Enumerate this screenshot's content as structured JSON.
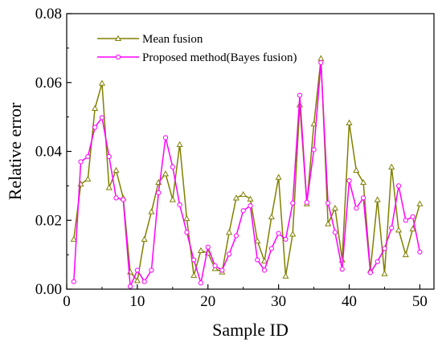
{
  "chart_data": {
    "type": "line",
    "xlabel": "Sample ID",
    "ylabel": "Relative error",
    "xlim": [
      0,
      52
    ],
    "ylim": [
      0,
      0.08
    ],
    "xticks": [
      0,
      10,
      20,
      30,
      40,
      50
    ],
    "yticks": [
      0.0,
      0.02,
      0.04,
      0.06,
      0.08
    ],
    "xtick_labels": [
      "0",
      "10",
      "20",
      "30",
      "40",
      "50"
    ],
    "ytick_labels": [
      "0.00",
      "0.02",
      "0.04",
      "0.06",
      "0.08"
    ],
    "grid": false,
    "legend_position": "top-left",
    "x": [
      1,
      2,
      3,
      4,
      5,
      6,
      7,
      8,
      9,
      10,
      11,
      12,
      13,
      14,
      15,
      16,
      17,
      18,
      19,
      20,
      21,
      22,
      23,
      24,
      25,
      26,
      27,
      28,
      29,
      30,
      31,
      32,
      33,
      34,
      35,
      36,
      37,
      38,
      39,
      40,
      41,
      42,
      43,
      44,
      45,
      46,
      47,
      48,
      49,
      50
    ],
    "series": [
      {
        "name": "Mean fusion",
        "color": "#808000",
        "marker": "triangle",
        "values": [
          0.0145,
          0.0305,
          0.032,
          0.0525,
          0.0598,
          0.0295,
          0.0345,
          0.0265,
          0.005,
          0.0025,
          0.0145,
          0.0225,
          0.031,
          0.0335,
          0.026,
          0.042,
          0.0205,
          0.004,
          0.0112,
          0.0105,
          0.006,
          0.005,
          0.0165,
          0.0265,
          0.0275,
          0.0262,
          0.014,
          0.0082,
          0.021,
          0.0325,
          0.0038,
          0.016,
          0.0535,
          0.0248,
          0.048,
          0.067,
          0.019,
          0.0235,
          0.0085,
          0.0483,
          0.0345,
          0.031,
          0.0055,
          0.026,
          0.0045,
          0.0355,
          0.0172,
          0.01,
          0.0175,
          0.0248
        ]
      },
      {
        "name": "Proposed method(Bayes fusion)",
        "color": "#ff00ff",
        "marker": "circle",
        "values": [
          0.0022,
          0.037,
          0.0385,
          0.047,
          0.0498,
          0.0385,
          0.0265,
          0.026,
          0.0008,
          0.0055,
          0.0022,
          0.0055,
          0.028,
          0.044,
          0.0355,
          0.0245,
          0.0165,
          0.0085,
          0.0018,
          0.0122,
          0.0068,
          0.0055,
          0.0102,
          0.0155,
          0.0228,
          0.0242,
          0.0085,
          0.0055,
          0.0118,
          0.0162,
          0.0145,
          0.025,
          0.0563,
          0.0252,
          0.0405,
          0.0658,
          0.025,
          0.0165,
          0.0058,
          0.0315,
          0.0235,
          0.0265,
          0.0048,
          0.008,
          0.0118,
          0.0178,
          0.03,
          0.02,
          0.021,
          0.0108
        ]
      }
    ]
  }
}
